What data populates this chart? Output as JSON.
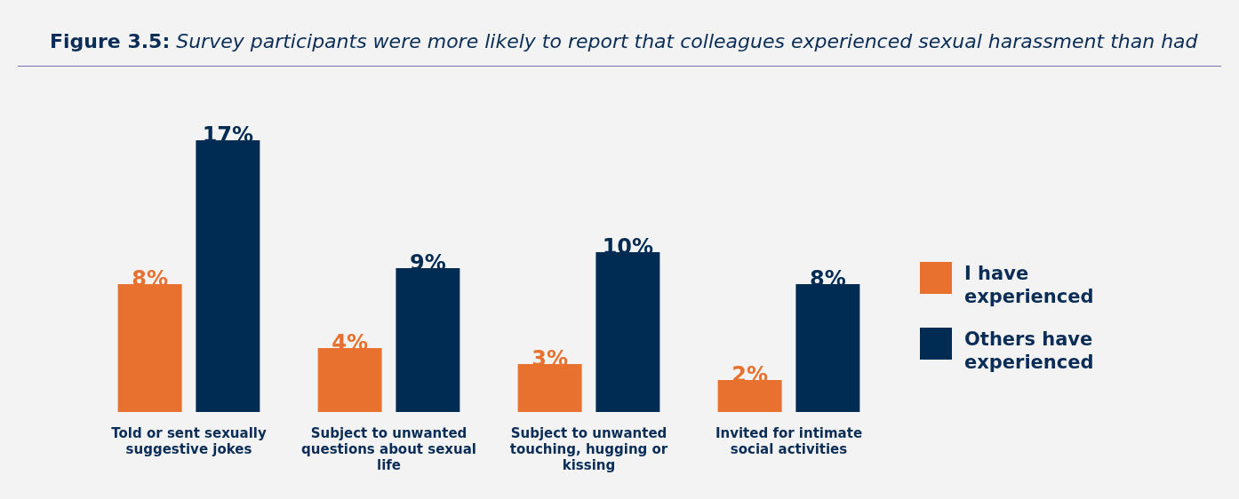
{
  "chart_data": {
    "type": "bar",
    "title": "Figure 3.5: Survey participants were more likely to report that colleagues experienced sexual harassment than had",
    "categories": [
      "Told or sent sexually suggestive jokes",
      "Subject to unwanted questions about sexual life",
      "Subject to unwanted touching, hugging or kissing",
      "Invited for intimate social activities"
    ],
    "series": [
      {
        "name": "I have experienced",
        "color": "#e8712f",
        "values": [
          8,
          4,
          3,
          2
        ],
        "value_labels": [
          "8%",
          "4%",
          "3%",
          "2%"
        ]
      },
      {
        "name": "Others have experienced",
        "color": "#002b52",
        "values": [
          17,
          9,
          10,
          8
        ],
        "value_labels": [
          "17%",
          "9%",
          "10%",
          "8%"
        ]
      }
    ],
    "legend": "right",
    "grid": false
  }
}
